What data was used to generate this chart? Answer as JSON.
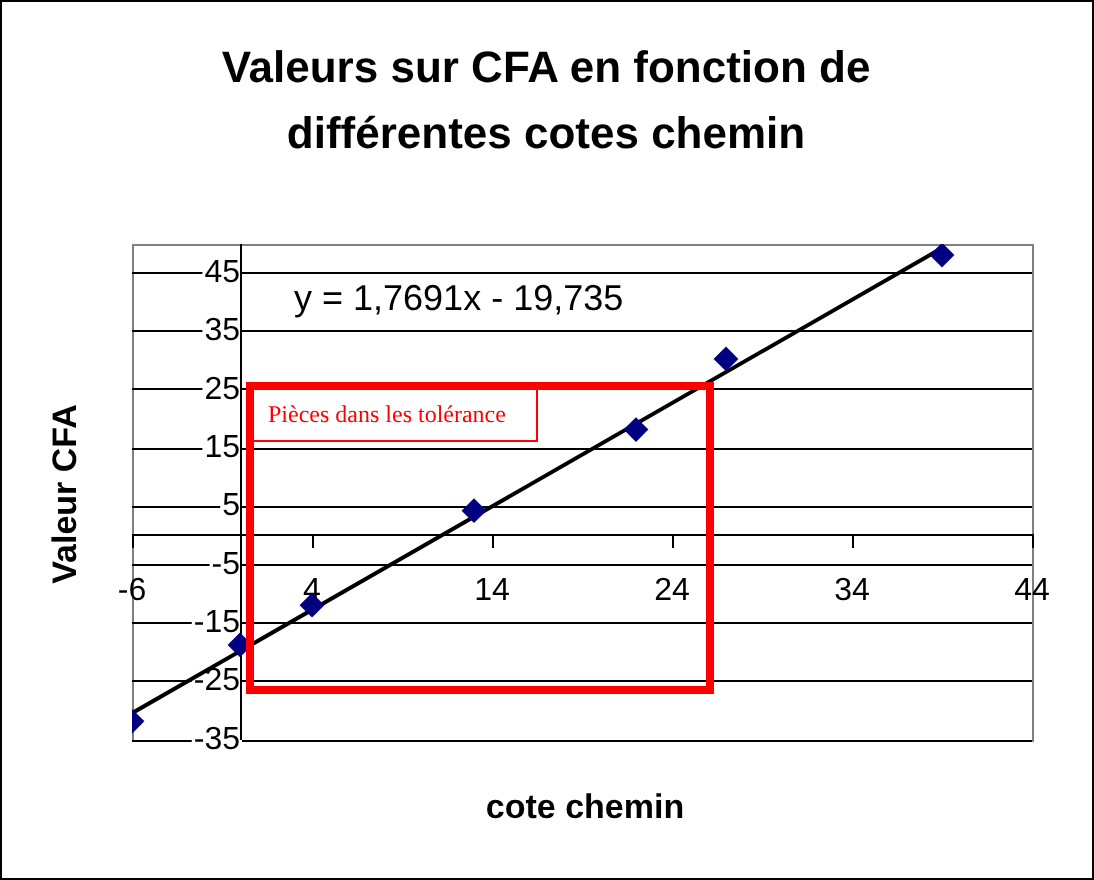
{
  "chart_data": {
    "type": "scatter",
    "title": "Valeurs sur CFA en fonction de différentes cotes chemin",
    "xlabel": "cote chemin",
    "ylabel": "Valeur CFA",
    "annotations": [
      "y = 1,7691x - 19,735",
      "Pièces dans les tolérance"
    ],
    "xlim": [
      -6,
      44
    ],
    "xticks": [
      -6,
      4,
      14,
      24,
      34,
      44
    ],
    "ylim": [
      -35,
      50
    ],
    "yticks": [
      -35,
      -25,
      -15,
      -5,
      5,
      15,
      25,
      35,
      45
    ],
    "grid": "y",
    "marker": "diamond",
    "series": [
      {
        "type": "scatter",
        "color": "#000080",
        "x": [
          -6,
          0,
          4,
          13,
          22,
          27,
          39
        ],
        "values": [
          -31.8,
          -18.7,
          -11.9,
          4.3,
          18.2,
          30.3,
          48.1
        ]
      },
      {
        "type": "line",
        "color": "#000000",
        "marker": "none",
        "line_style": "solid",
        "x": [
          -6,
          39
        ],
        "values": [
          -30.4,
          49.3
        ]
      }
    ]
  }
}
